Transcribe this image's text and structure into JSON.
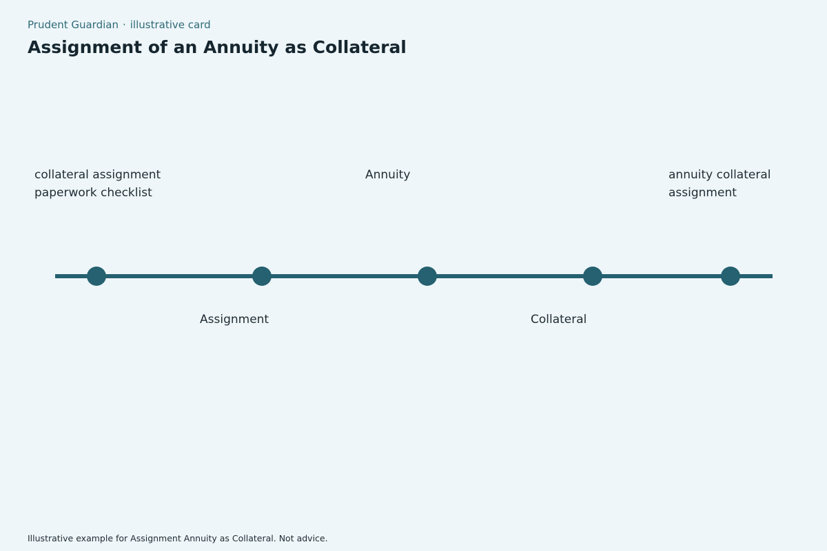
{
  "header": {
    "brand": "Prudent Guardian",
    "separator": "·",
    "tagline": "illustrative card",
    "title": "Assignment of an Annuity as Collateral"
  },
  "timeline": {
    "stages": [
      {
        "label": "collateral assignment paperwork checklist",
        "side": "above"
      },
      {
        "label": "Assignment",
        "side": "below"
      },
      {
        "label": "Annuity",
        "side": "above"
      },
      {
        "label": "Collateral",
        "side": "below"
      },
      {
        "label": "annuity collateral assignment",
        "side": "above"
      }
    ],
    "colors": {
      "line": "#256170",
      "node": "#256170"
    }
  },
  "footer": {
    "note": "Illustrative example for Assignment Annuity as Collateral. Not advice."
  }
}
